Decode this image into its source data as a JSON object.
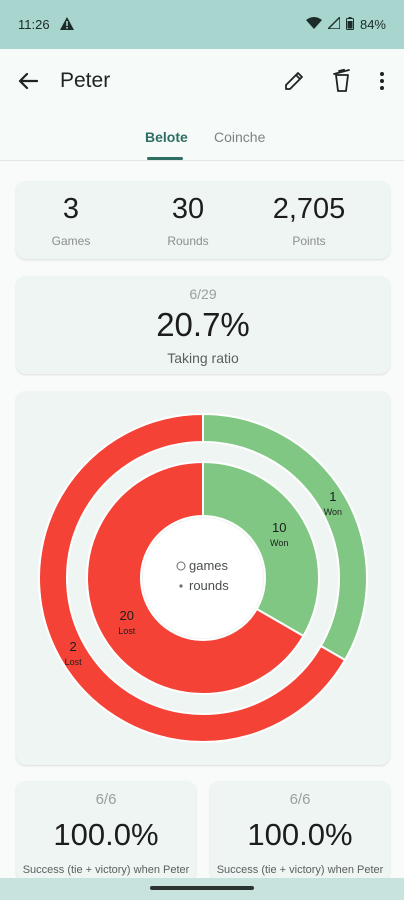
{
  "status_bar": {
    "time": "11:26",
    "battery": "84%",
    "icons": [
      "warning-icon",
      "wifi-icon",
      "signal-icon",
      "battery-icon"
    ]
  },
  "app_bar": {
    "title": "Peter",
    "actions": [
      "back-arrow-icon",
      "edit-pencil-icon",
      "trash-icon",
      "more-vert-icon"
    ]
  },
  "tabs": [
    {
      "label": "Belote",
      "selected": true
    },
    {
      "label": "Coinche",
      "selected": false
    }
  ],
  "stats": {
    "games": {
      "value": "3",
      "label": "Games"
    },
    "rounds": {
      "value": "30",
      "label": "Rounds"
    },
    "points": {
      "value": "2,705",
      "label": "Points"
    }
  },
  "taking_ratio": {
    "fraction": "6/29",
    "percent": "20.7%",
    "label": "Taking ratio"
  },
  "chart_data": {
    "type": "pie",
    "style": "nested-donut",
    "legend": [
      {
        "label": "games",
        "marker": "circle"
      },
      {
        "label": "rounds",
        "marker": "dot"
      }
    ],
    "series": [
      {
        "name": "games",
        "ring": "outer",
        "slices": [
          {
            "label": "Won",
            "value": 1,
            "color": "#81c784"
          },
          {
            "label": "Lost",
            "value": 2,
            "color": "#f44336"
          }
        ]
      },
      {
        "name": "rounds",
        "ring": "inner",
        "slices": [
          {
            "label": "Won",
            "value": 10,
            "color": "#81c784"
          },
          {
            "label": "Lost",
            "value": 20,
            "color": "#f44336"
          }
        ]
      }
    ]
  },
  "bottom_cards": [
    {
      "fraction": "6/6",
      "percent": "100.0%",
      "label": "Success (tie + victory) when Peter"
    },
    {
      "fraction": "6/6",
      "percent": "100.0%",
      "label": "Success (tie + victory) when Peter"
    }
  ],
  "colors": {
    "accent": "#2d6f62",
    "status_bar": "#a8d5cd",
    "won": "#81c784",
    "lost": "#f44336"
  }
}
